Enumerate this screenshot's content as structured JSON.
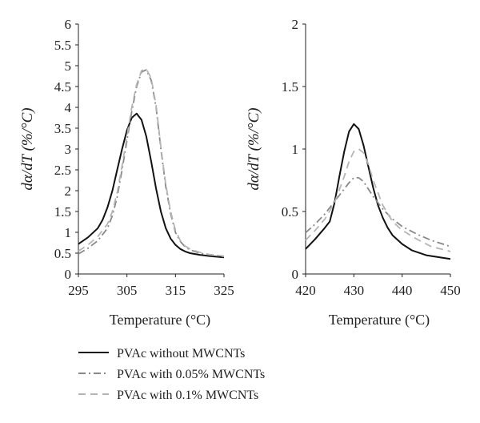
{
  "chart_data": [
    {
      "type": "line",
      "xlabel": "Temperature (°C)",
      "ylabel": "dα/dT (%/°C)",
      "xlim": [
        295,
        325
      ],
      "ylim": [
        0,
        6
      ],
      "xticks": [
        "295",
        "305",
        "315",
        "325"
      ],
      "yticks": [
        "0",
        "0.5",
        "1",
        "1.5",
        "2",
        "2.5",
        "3",
        "3.5",
        "4",
        "4.5",
        "5",
        "5.5",
        "6"
      ],
      "grid": false,
      "series": [
        {
          "name": "PVAc without MWCNTs",
          "color": "#111111",
          "dash": "solid",
          "x": [
            295,
            297,
            299,
            300,
            301,
            302,
            303,
            304,
            305,
            306,
            307,
            308,
            309,
            310,
            311,
            312,
            313,
            314,
            315,
            316,
            317,
            318,
            320,
            322,
            325
          ],
          "y": [
            0.72,
            0.88,
            1.1,
            1.3,
            1.6,
            2.0,
            2.5,
            3.0,
            3.45,
            3.75,
            3.85,
            3.7,
            3.3,
            2.7,
            2.05,
            1.5,
            1.1,
            0.85,
            0.7,
            0.6,
            0.54,
            0.5,
            0.46,
            0.43,
            0.4
          ]
        },
        {
          "name": "PVAc with 0.05% MWCNTs",
          "color": "#888888",
          "dash": "dashdot",
          "x": [
            295,
            297,
            299,
            301,
            302,
            303,
            304,
            305,
            306,
            307,
            308,
            309,
            310,
            311,
            312,
            313,
            314,
            315,
            316,
            317,
            318,
            320,
            322,
            325
          ],
          "y": [
            0.48,
            0.62,
            0.8,
            1.1,
            1.4,
            1.85,
            2.5,
            3.2,
            3.9,
            4.5,
            4.85,
            4.9,
            4.65,
            4.0,
            3.0,
            2.1,
            1.45,
            1.0,
            0.78,
            0.65,
            0.58,
            0.5,
            0.46,
            0.42
          ]
        },
        {
          "name": "PVAc with 0.1% MWCNTs",
          "color": "#b5b5b5",
          "dash": "dashed",
          "x": [
            295,
            297,
            299,
            301,
            302,
            303,
            304,
            305,
            306,
            307,
            308,
            309,
            310,
            311,
            312,
            313,
            314,
            315,
            316,
            317,
            318,
            320,
            322,
            325
          ],
          "y": [
            0.55,
            0.7,
            0.9,
            1.2,
            1.5,
            1.95,
            2.6,
            3.3,
            4.0,
            4.55,
            4.88,
            4.92,
            4.7,
            4.05,
            3.05,
            2.15,
            1.5,
            1.05,
            0.8,
            0.67,
            0.6,
            0.52,
            0.47,
            0.43
          ]
        }
      ]
    },
    {
      "type": "line",
      "xlabel": "Temperature (°C)",
      "ylabel": "dα/dT (%/°C)",
      "xlim": [
        420,
        450
      ],
      "ylim": [
        0,
        2
      ],
      "xticks": [
        "420",
        "430",
        "440",
        "450"
      ],
      "yticks": [
        "0",
        "0.5",
        "1",
        "1.5",
        "2"
      ],
      "grid": false,
      "series": [
        {
          "name": "PVAc without MWCNTs",
          "color": "#111111",
          "dash": "solid",
          "x": [
            420,
            422,
            424,
            425,
            426,
            427,
            428,
            429,
            430,
            431,
            432,
            433,
            434,
            435,
            436,
            437,
            438,
            440,
            442,
            445,
            450
          ],
          "y": [
            0.2,
            0.28,
            0.37,
            0.42,
            0.57,
            0.78,
            0.98,
            1.14,
            1.2,
            1.16,
            1.03,
            0.86,
            0.69,
            0.55,
            0.45,
            0.37,
            0.31,
            0.24,
            0.19,
            0.15,
            0.12
          ]
        },
        {
          "name": "PVAc with 0.05% MWCNTs",
          "color": "#888888",
          "dash": "dashdot",
          "x": [
            420,
            422,
            424,
            426,
            428,
            429,
            430,
            431,
            432,
            433,
            434,
            436,
            438,
            440,
            443,
            446,
            450
          ],
          "y": [
            0.33,
            0.4,
            0.48,
            0.58,
            0.68,
            0.73,
            0.77,
            0.77,
            0.74,
            0.68,
            0.62,
            0.52,
            0.44,
            0.38,
            0.32,
            0.27,
            0.22
          ]
        },
        {
          "name": "PVAc with 0.1% MWCNTs",
          "color": "#b5b5b5",
          "dash": "dashed",
          "x": [
            420,
            422,
            424,
            426,
            428,
            429,
            430,
            431,
            432,
            433,
            434,
            436,
            438,
            440,
            443,
            446,
            450
          ],
          "y": [
            0.27,
            0.35,
            0.44,
            0.57,
            0.78,
            0.9,
            0.98,
            1.0,
            0.97,
            0.88,
            0.75,
            0.55,
            0.42,
            0.35,
            0.28,
            0.22,
            0.18
          ]
        }
      ]
    }
  ],
  "legend": {
    "placement": "bottom-center",
    "items": [
      {
        "label": "PVAc without MWCNTs",
        "color": "#111111",
        "dash": "solid"
      },
      {
        "label": "PVAc with 0.05% MWCNTs",
        "color": "#888888",
        "dash": "dashdot"
      },
      {
        "label": "PVAc with 0.1% MWCNTs",
        "color": "#b5b5b5",
        "dash": "dashed"
      }
    ]
  }
}
